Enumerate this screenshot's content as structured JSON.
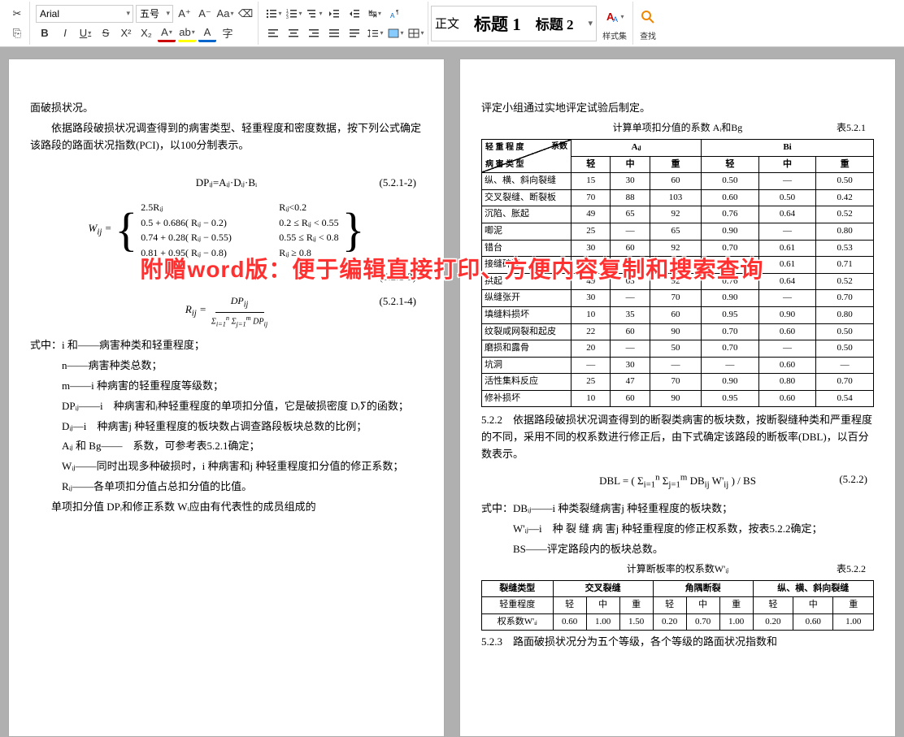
{
  "toolbar": {
    "font_family": "Arial",
    "font_size": "五号",
    "format_brush": "⎘",
    "increase_font": "A⁺",
    "decrease_font": "A⁻",
    "change_case": "Aa",
    "clear_format": "⌫",
    "bold": "B",
    "italic": "I",
    "underline": "U",
    "strike": "S",
    "superscript": "X²",
    "subscript": "X₂",
    "font_color": "A",
    "highlight": "ab",
    "char_border": "A",
    "char_shading": "字",
    "bullets": "≔",
    "numbering": "≔",
    "multilevel": "≔",
    "decrease_indent": "⇤",
    "increase_indent": "⇥",
    "tab_stops": "↹",
    "editing_marks": "¶",
    "align_left": "≡",
    "align_center": "≡",
    "align_right": "≡",
    "align_justify": "≡",
    "line_spacing": "↕",
    "shading": "▦",
    "borders": "⊞"
  },
  "styles": {
    "normal": "正文",
    "heading1": "标题 1",
    "heading2": "标题 2",
    "style_set_label": "样式集",
    "find_label": "查找"
  },
  "overlay_text": "附赠word版：便于编辑直接打印、方便内容复制和搜索查询",
  "page1": {
    "p1": "面破损状况。",
    "p2": "　　依据路段破损状况调查得到的病害类型、轻重程度和密度数据，按下列公式确定该路段的路面状况指数(PCI)，以100分制表示。",
    "eq2": "DPᵢⱼ=Aᵢⱼ·Dᵢⱼ·Bᵢ",
    "eq2_num": "(5.2.1-2)",
    "wij_rows": [
      [
        "2.5Rᵢⱼ",
        "Rᵢⱼ<0.2"
      ],
      [
        "0.5 + 0.686( Rᵢⱼ − 0.2)",
        "0.2 ≤ Rᵢⱼ < 0.55"
      ],
      [
        "0.74 + 0.28( Rᵢⱼ − 0.55)",
        "0.55 ≤ Rᵢⱼ < 0.8"
      ],
      [
        "0.81 + 0.95( Rᵢⱼ − 0.8)",
        "Rᵢⱼ ≥ 0.8"
      ]
    ],
    "eq3_num": "(5.2.1-3)",
    "eq4_num": "(5.2.1-4)",
    "def_intro": "式中：i 和——病害种类和轻重程度；",
    "defs": [
      "n——病害种类总数；",
      "m——i 种病害的轻重程度等级数；",
      "DPᵢⱼ——i　种病害和ⱼ种轻重程度的单项扣分值，它是破损密度 Dᵢⵢ的函数；",
      "Dᵢⱼ—i　种病害j 种轻重程度的板块数占调查路段板块总数的比例；",
      "Aᵢⱼ 和 Bg——　系数，可参考表5.2.1确定；",
      "Wᵢⱼ——同时出现多种破损时，i 种病害和j 种轻重程度扣分值的修正系数；",
      "Rᵢⱼ——各单项扣分值占总扣分值的比值。"
    ],
    "p_last": "　　单项扣分值 DPᵢ和修正系数 Wᵢ应由有代表性的成员组成的"
  },
  "page2": {
    "p1": "评定小组通过实地评定试验后制定。",
    "tbl1_title": "计算单项扣分值的系数 Aᵢ和Bg",
    "tbl1_num": "表5.2.1",
    "tbl1_diag_top": "系数",
    "tbl1_diag_left1": "轻 重 程 度",
    "tbl1_diag_left2": "病 害 类 型",
    "tbl1_h1": [
      "Aᵢⱼ",
      "Bi"
    ],
    "tbl1_h2": [
      "轻",
      "中",
      "重",
      "轻",
      "中",
      "重"
    ],
    "tbl1_rows": [
      [
        "纵、横、斜向裂缝",
        "15",
        "30",
        "60",
        "0.50",
        "—",
        "0.50"
      ],
      [
        "交叉裂缝、断裂板",
        "70",
        "88",
        "103",
        "0.60",
        "0.50",
        "0.42"
      ],
      [
        "沉陷、胀起",
        "49",
        "65",
        "92",
        "0.76",
        "0.64",
        "0.52"
      ],
      [
        "唧泥",
        "25",
        "—",
        "65",
        "0.90",
        "—",
        "0.80"
      ],
      [
        "错台",
        "30",
        "60",
        "92",
        "0.70",
        "0.61",
        "0.53"
      ],
      [
        "接缝碎裂",
        "23",
        "30",
        "51",
        "0.81",
        "0.61",
        "0.71"
      ],
      [
        "拱起",
        "49",
        "65",
        "92",
        "0.76",
        "0.64",
        "0.52"
      ],
      [
        "纵缝张开",
        "30",
        "—",
        "70",
        "0.90",
        "—",
        "0.70"
      ],
      [
        "填缝料损坏",
        "10",
        "35",
        "60",
        "0.95",
        "0.90",
        "0.80"
      ],
      [
        "纹裂咸网裂和起皮",
        "22",
        "60",
        "90",
        "0.70",
        "0.60",
        "0.50"
      ],
      [
        "磨损和露骨",
        "20",
        "—",
        "50",
        "0.70",
        "—",
        "0.50"
      ],
      [
        "坑洞",
        "—",
        "30",
        "—",
        "—",
        "0.60",
        "—"
      ],
      [
        "活性集料反应",
        "25",
        "47",
        "70",
        "0.90",
        "0.80",
        "0.70"
      ],
      [
        "修补损坏",
        "10",
        "60",
        "90",
        "0.95",
        "0.60",
        "0.54"
      ]
    ],
    "p522": "5.2.2　依据路段破损状况调查得到的断裂类病害的板块数，按断裂缝种类和严重程度的不同，采用不同的权系数进行修正后，由下式确定该路段的断板率(DBL)，以百分数表示。",
    "eq522_num": "(5.2.2)",
    "def2_intro": "式中：DBᵢⱼ——i 种类裂缝病害j 种轻重程度的板块数；",
    "defs2": [
      "W'ᵢⱼ—i　种 裂 缝 病 害j 种轻重程度的修正权系数，按表5.2.2确定；",
      "BS——评定路段内的板块总数。"
    ],
    "tbl2_title": "计算断板率的权系数W'ᵢⱼ",
    "tbl2_num": "表5.2.2",
    "tbl2_h1": [
      "裂缝类型",
      "交叉裂缝",
      "角隅断裂",
      "纵、横、斜向裂缝"
    ],
    "tbl2_h2": [
      "轻重程度",
      "轻",
      "中",
      "重",
      "轻",
      "中",
      "重",
      "轻",
      "中",
      "重"
    ],
    "tbl2_row": [
      "权系数W'ᵢⱼ",
      "0.60",
      "1.00",
      "1.50",
      "0.20",
      "0.70",
      "1.00",
      "0.20",
      "0.60",
      "1.00"
    ],
    "p523": "5.2.3　路面破损状况分为五个等级，各个等级的路面状况指数和"
  }
}
